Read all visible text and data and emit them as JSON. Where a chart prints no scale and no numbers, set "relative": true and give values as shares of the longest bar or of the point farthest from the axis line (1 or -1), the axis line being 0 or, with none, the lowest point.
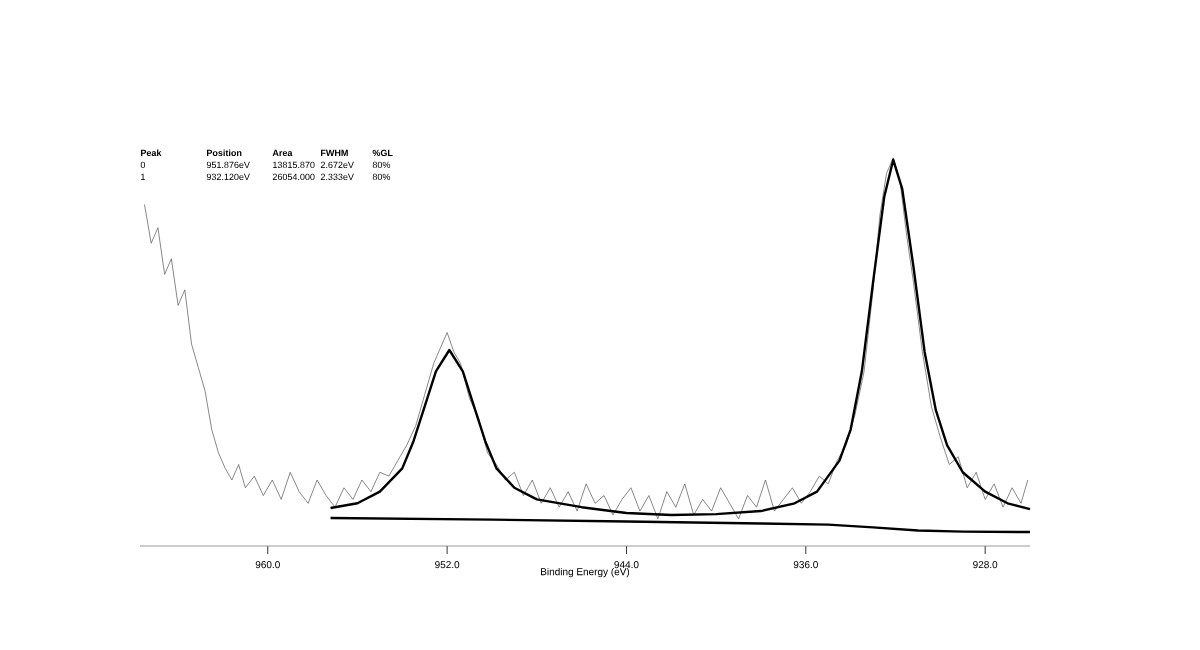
{
  "chart_data": {
    "type": "line",
    "relative": true,
    "xlabel": "Binding Energy (eV)",
    "xlim": [
      965.7,
      926
    ],
    "xticks": [
      {
        "value": 960,
        "label": "960.0"
      },
      {
        "value": 952,
        "label": "952.0"
      },
      {
        "value": 944,
        "label": "944.0"
      },
      {
        "value": 936,
        "label": "936.0"
      },
      {
        "value": 928,
        "label": "928.0"
      }
    ],
    "annotations": [
      "Peak",
      "Position",
      "Area",
      "FWHM",
      "%GL",
      "0",
      "951.876eV",
      "13815.870",
      "2.672eV",
      "80%",
      "1",
      "932.120eV",
      "26054.000",
      "2.333eV",
      "80%"
    ],
    "series": [
      {
        "color": "#555555",
        "x": [
          965.5,
          965.2,
          964.9,
          964.6,
          964.3,
          964.0,
          963.7,
          963.4,
          963.1,
          962.8,
          962.5,
          962.2,
          961.9,
          961.6,
          961.3,
          961.0,
          960.6,
          960.2,
          959.8,
          959.4,
          959.0,
          958.6,
          958.2,
          957.8,
          957.4,
          957.0,
          956.6,
          956.2,
          955.8,
          955.4,
          955.0,
          954.6,
          954.2,
          953.8,
          953.4,
          953.0,
          952.6,
          952.3,
          952.0,
          951.7,
          951.4,
          951.0,
          950.6,
          950.2,
          949.8,
          949.4,
          949.0,
          948.6,
          948.2,
          947.8,
          947.4,
          947.0,
          946.6,
          946.2,
          945.8,
          945.4,
          945.0,
          944.6,
          944.2,
          943.8,
          943.4,
          943.0,
          942.6,
          942.2,
          941.8,
          941.4,
          941.0,
          940.6,
          940.2,
          939.8,
          939.4,
          939.0,
          938.6,
          938.2,
          937.8,
          937.4,
          937.0,
          936.6,
          936.2,
          935.8,
          935.4,
          935.0,
          934.6,
          934.2,
          933.8,
          933.4,
          933.0,
          932.7,
          932.4,
          932.1,
          931.8,
          931.5,
          931.2,
          930.8,
          930.4,
          930.0,
          929.6,
          929.2,
          928.8,
          928.4,
          928.0,
          927.6,
          927.2,
          926.8,
          926.4,
          926.1
        ],
        "values": [
          0.88,
          0.78,
          0.82,
          0.7,
          0.74,
          0.62,
          0.66,
          0.52,
          0.46,
          0.4,
          0.3,
          0.24,
          0.2,
          0.17,
          0.21,
          0.15,
          0.18,
          0.13,
          0.17,
          0.12,
          0.19,
          0.14,
          0.11,
          0.17,
          0.13,
          0.1,
          0.15,
          0.12,
          0.17,
          0.14,
          0.19,
          0.18,
          0.22,
          0.26,
          0.31,
          0.39,
          0.47,
          0.51,
          0.55,
          0.5,
          0.47,
          0.38,
          0.33,
          0.24,
          0.21,
          0.17,
          0.19,
          0.13,
          0.17,
          0.11,
          0.15,
          0.1,
          0.14,
          0.09,
          0.16,
          0.11,
          0.13,
          0.08,
          0.12,
          0.15,
          0.09,
          0.13,
          0.07,
          0.14,
          0.1,
          0.16,
          0.08,
          0.12,
          0.09,
          0.15,
          0.11,
          0.07,
          0.13,
          0.1,
          0.17,
          0.09,
          0.12,
          0.15,
          0.11,
          0.14,
          0.18,
          0.16,
          0.22,
          0.26,
          0.34,
          0.45,
          0.66,
          0.85,
          0.96,
          1.0,
          0.94,
          0.8,
          0.68,
          0.5,
          0.36,
          0.28,
          0.21,
          0.23,
          0.15,
          0.19,
          0.12,
          0.16,
          0.1,
          0.15,
          0.11,
          0.17
        ]
      },
      {
        "color": "#000000",
        "x": [
          957.2,
          956,
          955,
          954,
          953.5,
          953,
          952.5,
          951.9,
          951.3,
          950.8,
          950.3,
          949.8,
          949,
          948,
          946,
          944,
          942,
          940,
          938,
          936.5,
          935.5,
          934.5,
          934,
          933.5,
          933,
          932.5,
          932.1,
          931.7,
          931.2,
          930.7,
          930.2,
          929.7,
          929,
          928,
          927,
          926
        ],
        "values": [
          0.098,
          0.11,
          0.14,
          0.2,
          0.27,
          0.36,
          0.45,
          0.505,
          0.45,
          0.36,
          0.27,
          0.2,
          0.15,
          0.12,
          0.1,
          0.085,
          0.08,
          0.082,
          0.09,
          0.11,
          0.14,
          0.22,
          0.3,
          0.45,
          0.68,
          0.9,
          0.995,
          0.92,
          0.72,
          0.5,
          0.35,
          0.26,
          0.19,
          0.14,
          0.11,
          0.095
        ]
      },
      {
        "color": "#000000",
        "x": [
          957.2,
          950,
          944,
          938,
          935,
          933,
          931,
          929,
          926
        ],
        "values": [
          0.072,
          0.068,
          0.063,
          0.058,
          0.055,
          0.048,
          0.04,
          0.037,
          0.036
        ]
      }
    ]
  }
}
